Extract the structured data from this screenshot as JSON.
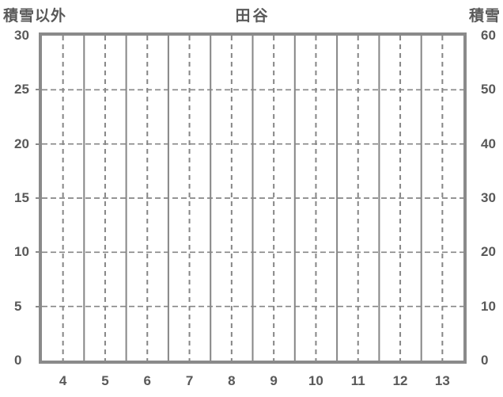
{
  "title": "田谷",
  "left_axis": {
    "title": "積雪以外",
    "ticks": [
      "30",
      "25",
      "20",
      "15",
      "10",
      "5",
      "0"
    ]
  },
  "right_axis": {
    "title": "積雪",
    "ticks": [
      "60",
      "50",
      "40",
      "30",
      "20",
      "10",
      "0"
    ]
  },
  "x_axis": {
    "ticks": [
      "4",
      "5",
      "6",
      "7",
      "8",
      "9",
      "10",
      "11",
      "12",
      "13"
    ]
  },
  "colors": {
    "frame": "#8a8a8a",
    "grid": "#868686",
    "text": "#595959",
    "background": "#ffffff"
  },
  "chart_data": {
    "type": "line",
    "title": "田谷",
    "categories": [
      4,
      5,
      6,
      7,
      8,
      9,
      10,
      11,
      12,
      13
    ],
    "series": [],
    "xlabel": "",
    "left_ylabel": "積雪以外",
    "right_ylabel": "積雪",
    "left_ylim": [
      0,
      30
    ],
    "left_tick_step": 5,
    "right_ylim": [
      0,
      60
    ],
    "right_tick_step": 10,
    "grid": true,
    "gridline_style": "dashed horizontal at each left tick; solid vertical at month boundaries; dashed vertical at month centers",
    "legend": "none",
    "note": "empty chart frame — no data series plotted"
  }
}
